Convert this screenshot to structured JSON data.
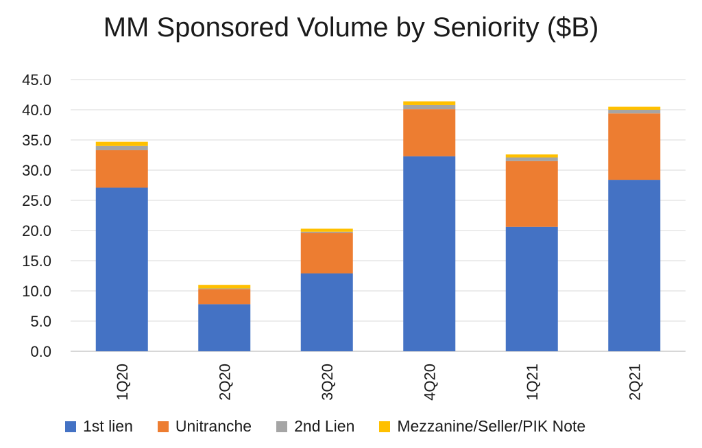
{
  "chart_data": {
    "type": "bar",
    "stacked": true,
    "title": "MM Sponsored Volume by Seniority ($B)",
    "categories": [
      "1Q20",
      "2Q20",
      "3Q20",
      "4Q20",
      "1Q21",
      "2Q21"
    ],
    "series": [
      {
        "name": "1st lien",
        "color": "#4472C4",
        "values": [
          27.1,
          7.8,
          12.9,
          32.3,
          20.6,
          28.4
        ]
      },
      {
        "name": "Unitranche",
        "color": "#ED7D31",
        "values": [
          6.2,
          2.5,
          6.7,
          7.8,
          10.9,
          11.0
        ]
      },
      {
        "name": "2nd Lien",
        "color": "#A5A5A5",
        "values": [
          0.7,
          0.1,
          0.2,
          0.7,
          0.6,
          0.6
        ]
      },
      {
        "name": "Mezzanine/Seller/PIK Note",
        "color": "#FFC000",
        "values": [
          0.7,
          0.6,
          0.5,
          0.6,
          0.5,
          0.5
        ]
      }
    ],
    "ylim": [
      0,
      45
    ],
    "yticks": [
      "0.0",
      "5.0",
      "10.0",
      "15.0",
      "20.0",
      "25.0",
      "30.0",
      "35.0",
      "40.0",
      "45.0"
    ],
    "grid": true,
    "legend_position": "bottom"
  }
}
